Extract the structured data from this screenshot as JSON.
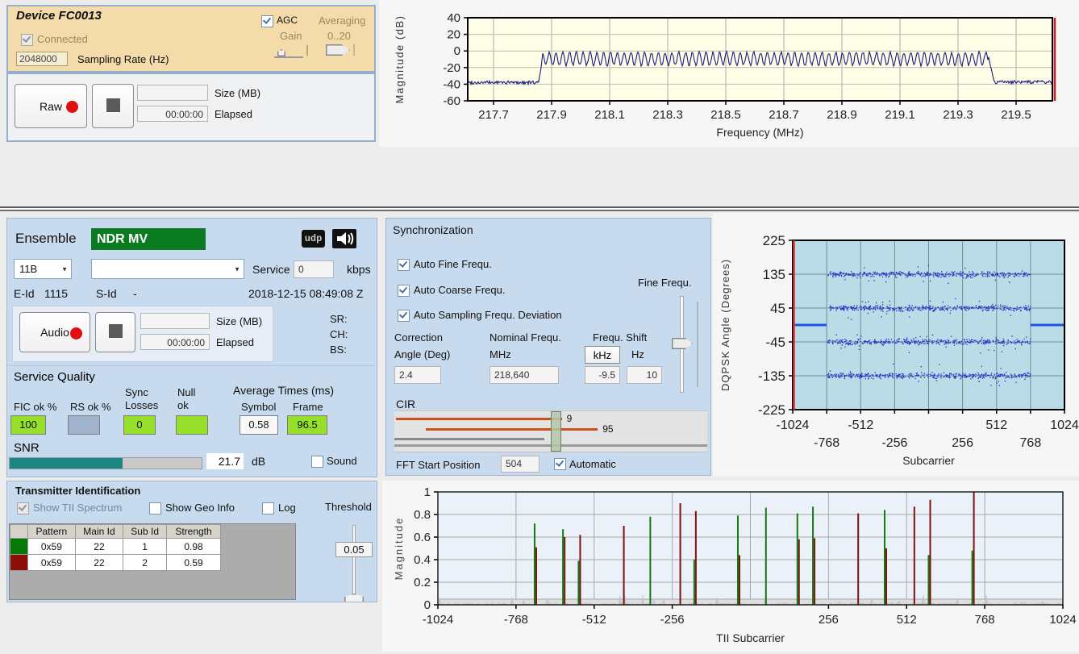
{
  "colors": {
    "panel-blue": "#C7DAEE",
    "tan": "#F3DBAA",
    "record-red": "#E01010",
    "green-box": "#97E02A",
    "rs-box": "#9FB4CC",
    "snr-fill": "#1B8580",
    "ensemble-green": "#0B7B22",
    "tii-row-green": "#067806",
    "tii-row-red": "#8B0E0A"
  },
  "device_panel": {
    "title": "Device FC0013",
    "agc_label": "AGC",
    "averaging_label": "Averaging",
    "gain_label": "Gain",
    "gain_range_label": "0..20",
    "connected_label": "Connected",
    "sampling_rate_value": "2048000",
    "sampling_rate_label": "Sampling Rate (Hz)",
    "record": {
      "button_label": "Raw",
      "size_value": "",
      "size_label": "Size (MB)",
      "elapsed_value": "00:00:00",
      "elapsed_label": "Elapsed"
    }
  },
  "ensemble_panel": {
    "title": "Ensemble",
    "name": "NDR MV",
    "udp_badge": "udp",
    "speaker_icon": "speaker",
    "channel_value": "11B",
    "service_combo_value": "",
    "service_label": "Service",
    "bitrate_value": "0",
    "kbps_label": "kbps",
    "eid_label": "E-Id",
    "eid_value": "1115",
    "sid_label": "S-Id",
    "sid_value": "-",
    "timestamp": "2018-12-15 08:49:08 Z",
    "record": {
      "button_label": "Audio",
      "size_value": "",
      "size_label": "Size (MB)",
      "elapsed_value": "00:00:00",
      "elapsed_label": "Elapsed"
    },
    "sr_label": "SR:",
    "ch_label": "CH:",
    "bs_label": "BS:",
    "service_quality": {
      "title": "Service Quality",
      "fic_label": "FIC ok %",
      "fic_value": "100",
      "rs_label": "RS ok %",
      "rs_value": "",
      "sync_label_1": "Sync",
      "sync_label_2": "Losses",
      "sync_value": "0",
      "null_label_1": "Null",
      "null_label_2": "ok",
      "null_value": "",
      "avg_title": "Average Times (ms)",
      "symbol_label": "Symbol",
      "symbol_value": "0.58",
      "frame_label": "Frame",
      "frame_value": "96.5",
      "snr_label": "SNR",
      "snr_value": "21.7",
      "snr_unit": "dB",
      "snr_percent": 59,
      "sound_label": "Sound"
    }
  },
  "sync_panel": {
    "title": "Synchronization",
    "checkboxes": [
      "Auto Fine Frequ.",
      "Auto Coarse Frequ.",
      "Auto Sampling Frequ. Deviation"
    ],
    "fine_freq_label": "Fine Frequ.",
    "correction_label_1": "Correction",
    "correction_label_2": "Angle (Deg)",
    "correction_value": "2.4",
    "nominal_label_1": "Nominal Frequ.",
    "nominal_label_2": "MHz",
    "nominal_value": "218,640",
    "freq_shift_label": "Frequ. Shift",
    "khz_button": "kHz",
    "hz_label": "Hz",
    "khz_value": "-9.5",
    "hz_value": "10",
    "cir": {
      "label": "CIR",
      "bars": [
        {
          "from": 0.005,
          "to": 0.535,
          "label": "9",
          "y": 8,
          "color": "#C8511E"
        },
        {
          "from": 0.1,
          "to": 0.65,
          "label": "95",
          "y": 21,
          "color": "#C8511E"
        }
      ],
      "gray_bars": [
        {
          "from": 0,
          "to": 0.48,
          "y": 33,
          "color": "#8A8A8A"
        },
        {
          "from": 0,
          "to": 1,
          "y": 41,
          "color": "#9A9A9A"
        }
      ],
      "handle_center": 0.517
    },
    "fft_label": "FFT Start Position",
    "fft_value": "504",
    "automatic_label": "Automatic"
  },
  "tii_panel": {
    "title": "Transmitter Identification",
    "show_tii_label": "Show TII Spectrum",
    "show_geo_label": "Show Geo Info",
    "log_label": "Log",
    "threshold_label": "Threshold",
    "threshold_value": "0.05",
    "table": {
      "headers": [
        "",
        "Pattern",
        "Main Id",
        "Sub Id",
        "Strength"
      ],
      "rows": [
        {
          "color": "#067806",
          "pattern": "0x59",
          "main_id": "22",
          "sub_id": "1",
          "strength": "0.98"
        },
        {
          "color": "#8B0E0A",
          "pattern": "0x59",
          "main_id": "22",
          "sub_id": "2",
          "strength": "0.59"
        }
      ]
    }
  },
  "chart_data": [
    {
      "id": "rf_spectrum",
      "type": "line",
      "title": "",
      "xlabel": "Frequency (MHz)",
      "ylabel": "Magnitude (dB)",
      "xlim": [
        217.611,
        219.625
      ],
      "ylim": [
        -60,
        40
      ],
      "xticks": [
        217.7,
        217.9,
        218.1,
        218.3,
        218.5,
        218.7,
        218.9,
        219.1,
        219.3,
        219.5
      ],
      "yticks": [
        40,
        20,
        0,
        -20,
        -40,
        -60
      ],
      "grid": true,
      "plot_bg": "#FEFEE6",
      "line_color": "#1A1A85",
      "edge_marker_color": "#C42222",
      "signal": {
        "noise_floor_db": -38,
        "passband_mhz": [
          217.868,
          219.405
        ],
        "ripple_peak_db": -2,
        "ripple_min_db": -17,
        "ripple_period_mhz": 0.0235,
        "noise_amp_db": 2
      }
    },
    {
      "id": "dqpsk",
      "type": "scatter",
      "xlabel": "Subcarrier",
      "ylabel": "DQPSK Angle (Degrees)",
      "xlim": [
        -1024,
        1024
      ],
      "ylim": [
        -225,
        225
      ],
      "xticks_row1": [
        -1024,
        -512,
        512,
        1024
      ],
      "xticks_row2": [
        -768,
        -256,
        256,
        768
      ],
      "gridx": [
        -768,
        -512,
        -256,
        0,
        256,
        512,
        768
      ],
      "yticks": [
        225,
        135,
        45,
        -45,
        -135,
        -225
      ],
      "grid": true,
      "plot_bg": "#B9DCE6",
      "point_color": "#2438C8",
      "bands_deg": [
        135,
        45,
        -45,
        -135
      ],
      "band_x_range": [
        -768,
        768
      ],
      "band_sigma_deg": 4,
      "points_per_band": 430,
      "zero_line_segments": [
        [
          -1024,
          -768
        ],
        [
          768,
          1024
        ]
      ],
      "zero_line_color": "#2255DD",
      "left_edge_line_color": "#E03030"
    },
    {
      "id": "tii_spectrum",
      "type": "bar",
      "xlabel": "TII Subcarrier",
      "ylabel": "Magnitude",
      "xlim": [
        -1024,
        1024
      ],
      "ylim": [
        0,
        1
      ],
      "xticks": [
        -1024,
        -768,
        -512,
        -256,
        256,
        512,
        768,
        1024
      ],
      "gridx": [
        -768,
        -512,
        -256,
        0,
        256,
        512,
        768
      ],
      "yticks": [
        1,
        0.8,
        0.6,
        0.4,
        0.2,
        0
      ],
      "grid": true,
      "plot_bg": "#EAF1F8",
      "green_color": "#157815",
      "red_color": "#7D1410",
      "noise_color": "#C2C2C2",
      "noise_band_level": 0.05,
      "spikes": [
        {
          "x": -707,
          "green": 0.72,
          "red": 0.51
        },
        {
          "x": -614,
          "green": 0.67,
          "red": 0.6
        },
        {
          "x": -563,
          "green": 0.39,
          "red": 0.62
        },
        {
          "x": -420,
          "green": 0,
          "red": 0.7
        },
        {
          "x": -328,
          "green": 0.78,
          "red": 0
        },
        {
          "x": -235,
          "green": 0,
          "red": 0.9
        },
        {
          "x": -184,
          "green": 0.4,
          "red": 0.83
        },
        {
          "x": -41,
          "green": 0.79,
          "red": 0.44
        },
        {
          "x": 51,
          "green": 0.86,
          "red": 0
        },
        {
          "x": 154,
          "green": 0.81,
          "red": 0.58
        },
        {
          "x": 205,
          "green": 0.87,
          "red": 0.59
        },
        {
          "x": 348,
          "green": 0,
          "red": 0.81
        },
        {
          "x": 440,
          "green": 0.84,
          "red": 0.5
        },
        {
          "x": 532,
          "green": 0,
          "red": 0.87
        },
        {
          "x": 584,
          "green": 0.44,
          "red": 0.93
        },
        {
          "x": 727,
          "green": 0.48,
          "red": 1.0
        }
      ]
    }
  ]
}
